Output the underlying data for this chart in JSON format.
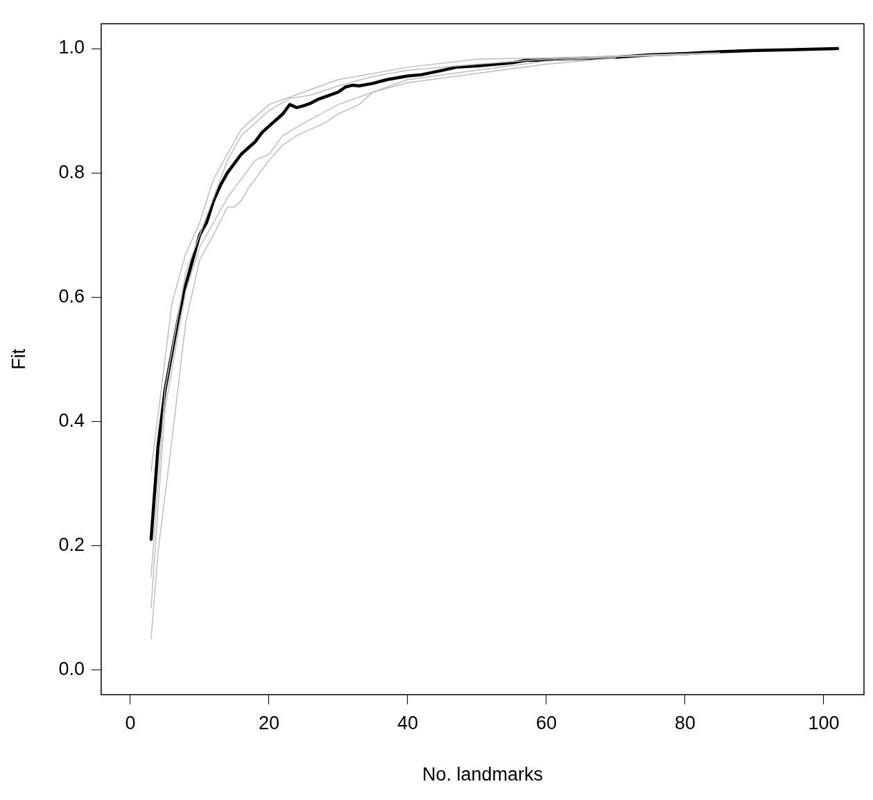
{
  "chart_data": {
    "type": "line",
    "xlabel": "No. landmarks",
    "ylabel": "Fit",
    "xlim": [
      -4.2,
      105.8
    ],
    "ylim": [
      -0.04,
      1.04
    ],
    "xticks": [
      0,
      20,
      40,
      60,
      80,
      100
    ],
    "yticks": [
      {
        "value": 0,
        "label": "0.0"
      },
      {
        "value": 0.2,
        "label": "0.2"
      },
      {
        "value": 0.4,
        "label": "0.4"
      },
      {
        "value": 0.6,
        "label": "0.6"
      },
      {
        "value": 0.8,
        "label": "0.8"
      },
      {
        "value": 1,
        "label": "1.0"
      }
    ],
    "grid": false,
    "legend": false,
    "marker": "none",
    "line_style": "solid",
    "series": [
      {
        "color": "#bebebe",
        "x": [
          3,
          5,
          6,
          8,
          10,
          12,
          14,
          16,
          20,
          25,
          30,
          40,
          50,
          60,
          70,
          85
        ],
        "values": [
          0.32,
          0.5,
          0.59,
          0.67,
          0.72,
          0.79,
          0.83,
          0.87,
          0.91,
          0.93,
          0.95,
          0.97,
          0.983,
          0.985,
          0.988,
          0.992
        ]
      },
      {
        "color": "#bebebe",
        "x": [
          3,
          4,
          6,
          8,
          10,
          12,
          14,
          15,
          16,
          17,
          18,
          20,
          22,
          24,
          26,
          28,
          30,
          33,
          35,
          40,
          50,
          60,
          70
        ],
        "values": [
          0.05,
          0.19,
          0.37,
          0.56,
          0.66,
          0.7,
          0.745,
          0.745,
          0.755,
          0.775,
          0.79,
          0.82,
          0.845,
          0.86,
          0.87,
          0.88,
          0.895,
          0.91,
          0.93,
          0.945,
          0.96,
          0.975,
          0.985
        ]
      },
      {
        "color": "#bebebe",
        "x": [
          3,
          5,
          8,
          10,
          12,
          14,
          16,
          18,
          20,
          22,
          25,
          30,
          35,
          40,
          50,
          60,
          70,
          80
        ],
        "values": [
          0.1,
          0.42,
          0.61,
          0.68,
          0.72,
          0.76,
          0.79,
          0.82,
          0.83,
          0.86,
          0.88,
          0.91,
          0.93,
          0.95,
          0.965,
          0.98,
          0.987,
          0.99
        ]
      },
      {
        "color": "#bebebe",
        "x": [
          3,
          5,
          8,
          10,
          12,
          14,
          16,
          18,
          20,
          23,
          26,
          30,
          35,
          40,
          50,
          60,
          75,
          85
        ],
        "values": [
          0.15,
          0.45,
          0.64,
          0.7,
          0.76,
          0.82,
          0.86,
          0.88,
          0.9,
          0.92,
          0.925,
          0.94,
          0.955,
          0.965,
          0.975,
          0.983,
          0.99,
          0.993
        ]
      },
      {
        "color": "#000000",
        "x": [
          3,
          4,
          5,
          6,
          7,
          8,
          9,
          10,
          11,
          12,
          13,
          14,
          15,
          16,
          17,
          18,
          19,
          20,
          21,
          22,
          23,
          24,
          25,
          26,
          27,
          28,
          30,
          31,
          32,
          33,
          35,
          37,
          40,
          42,
          45,
          47,
          50,
          55,
          57,
          60,
          65,
          70,
          75,
          80,
          85,
          90,
          95,
          102
        ],
        "values": [
          0.21,
          0.36,
          0.45,
          0.51,
          0.57,
          0.62,
          0.66,
          0.7,
          0.72,
          0.755,
          0.78,
          0.8,
          0.815,
          0.83,
          0.84,
          0.85,
          0.865,
          0.875,
          0.885,
          0.895,
          0.91,
          0.905,
          0.908,
          0.912,
          0.918,
          0.922,
          0.93,
          0.938,
          0.941,
          0.94,
          0.944,
          0.95,
          0.956,
          0.958,
          0.965,
          0.97,
          0.972,
          0.977,
          0.981,
          0.982,
          0.984,
          0.986,
          0.99,
          0.992,
          0.995,
          0.997,
          0.998,
          1.0
        ]
      }
    ]
  }
}
